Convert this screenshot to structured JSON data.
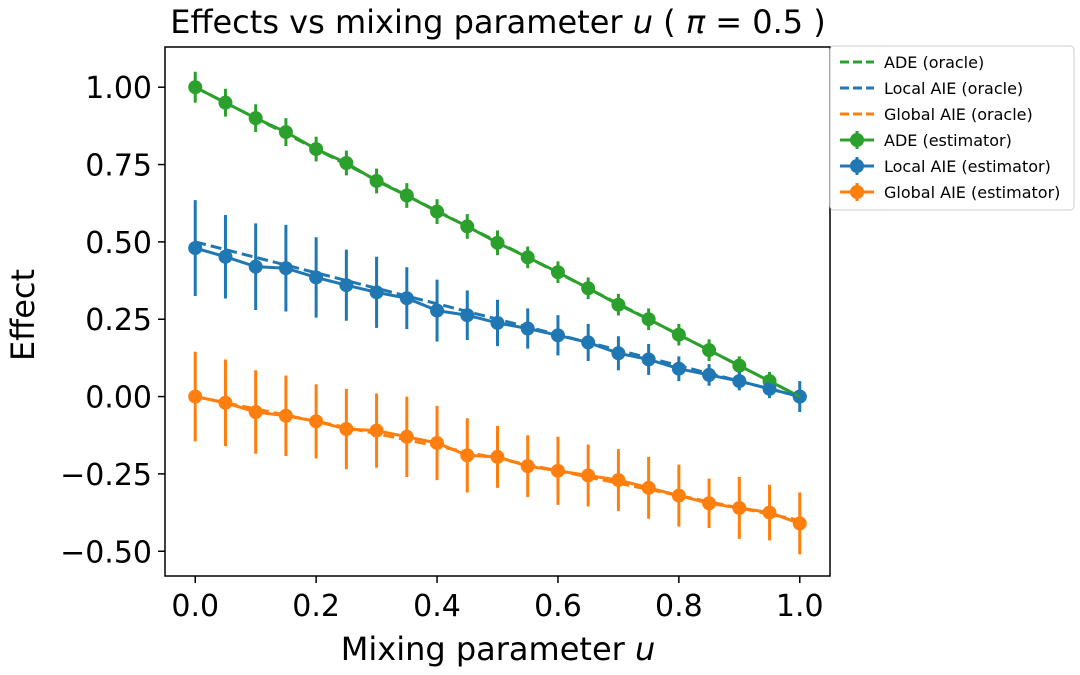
{
  "chart_data": {
    "type": "line",
    "title": "Effects vs mixing parameter u ( π = 0.5 )",
    "title_parts": {
      "prefix": "Effects vs mixing parameter ",
      "var_u": "u",
      "paren_open": " ( ",
      "var_pi": "π",
      "eq": " = 0.5 )"
    },
    "xlabel": "Mixing parameter u",
    "xlabel_parts": {
      "text": "Mixing parameter ",
      "var": "u"
    },
    "ylabel": "Effect",
    "xlim": [
      -0.05,
      1.05
    ],
    "ylim": [
      -0.58,
      1.13
    ],
    "xticks": [
      0.0,
      0.2,
      0.4,
      0.6,
      0.8,
      1.0
    ],
    "xtick_labels": [
      "0.0",
      "0.2",
      "0.4",
      "0.6",
      "0.8",
      "1.0"
    ],
    "yticks": [
      -0.5,
      -0.25,
      0.0,
      0.25,
      0.5,
      0.75,
      1.0
    ],
    "ytick_labels": [
      "−0.50",
      "−0.25",
      "0.00",
      "0.25",
      "0.50",
      "0.75",
      "1.00"
    ],
    "x": [
      0.0,
      0.05,
      0.1,
      0.15,
      0.2,
      0.25,
      0.3,
      0.35,
      0.4,
      0.45,
      0.5,
      0.55,
      0.6,
      0.65,
      0.7,
      0.75,
      0.8,
      0.85,
      0.9,
      0.95,
      1.0
    ],
    "oracle_series": [
      {
        "name": "ADE (oracle)",
        "color": "#2ca02c",
        "values": [
          1.0,
          0.95,
          0.9,
          0.85,
          0.8,
          0.75,
          0.7,
          0.65,
          0.6,
          0.55,
          0.5,
          0.45,
          0.4,
          0.35,
          0.3,
          0.25,
          0.2,
          0.15,
          0.1,
          0.05,
          0.0
        ]
      },
      {
        "name": "Local AIE (oracle)",
        "color": "#1f77b4",
        "values": [
          0.5,
          0.475,
          0.45,
          0.425,
          0.4,
          0.375,
          0.35,
          0.325,
          0.3,
          0.275,
          0.25,
          0.225,
          0.2,
          0.175,
          0.15,
          0.125,
          0.1,
          0.075,
          0.05,
          0.025,
          0.0
        ]
      },
      {
        "name": "Global AIE (oracle)",
        "color": "#ff7f0e",
        "values": [
          0.0,
          -0.02,
          -0.04,
          -0.06,
          -0.08,
          -0.1,
          -0.12,
          -0.14,
          -0.16,
          -0.18,
          -0.2,
          -0.22,
          -0.24,
          -0.26,
          -0.28,
          -0.3,
          -0.32,
          -0.34,
          -0.36,
          -0.38,
          -0.4
        ]
      }
    ],
    "estimator_series": [
      {
        "name": "ADE (estimator)",
        "color": "#2ca02c",
        "values": [
          1.0,
          0.95,
          0.9,
          0.855,
          0.8,
          0.755,
          0.697,
          0.65,
          0.598,
          0.55,
          0.497,
          0.45,
          0.402,
          0.35,
          0.297,
          0.25,
          0.2,
          0.15,
          0.1,
          0.05,
          0.0
        ],
        "errors": [
          0.05,
          0.045,
          0.045,
          0.045,
          0.04,
          0.04,
          0.04,
          0.04,
          0.04,
          0.04,
          0.04,
          0.035,
          0.035,
          0.035,
          0.035,
          0.035,
          0.035,
          0.035,
          0.03,
          0.03,
          0.005
        ]
      },
      {
        "name": "Local AIE (estimator)",
        "color": "#1f77b4",
        "values": [
          0.48,
          0.452,
          0.42,
          0.415,
          0.385,
          0.36,
          0.337,
          0.318,
          0.278,
          0.263,
          0.238,
          0.22,
          0.198,
          0.175,
          0.14,
          0.12,
          0.09,
          0.07,
          0.05,
          0.025,
          0.0
        ],
        "errors": [
          0.155,
          0.135,
          0.14,
          0.14,
          0.13,
          0.115,
          0.115,
          0.1,
          0.1,
          0.08,
          0.075,
          0.065,
          0.065,
          0.06,
          0.055,
          0.05,
          0.04,
          0.035,
          0.03,
          0.03,
          0.05
        ]
      },
      {
        "name": "Global AIE (estimator)",
        "color": "#ff7f0e",
        "values": [
          0.0,
          -0.02,
          -0.05,
          -0.062,
          -0.08,
          -0.105,
          -0.11,
          -0.13,
          -0.15,
          -0.19,
          -0.195,
          -0.225,
          -0.24,
          -0.255,
          -0.27,
          -0.295,
          -0.32,
          -0.345,
          -0.36,
          -0.375,
          -0.41
        ],
        "errors": [
          0.145,
          0.14,
          0.135,
          0.13,
          0.12,
          0.13,
          0.12,
          0.13,
          0.12,
          0.12,
          0.1,
          0.1,
          0.11,
          0.1,
          0.1,
          0.1,
          0.1,
          0.08,
          0.1,
          0.09,
          0.1
        ]
      }
    ],
    "legend": {
      "placement": "upper-right-outside",
      "entries": [
        "ADE (oracle)",
        "Local AIE (oracle)",
        "Global AIE (oracle)",
        "ADE (estimator)",
        "Local AIE (estimator)",
        "Global AIE (estimator)"
      ]
    }
  }
}
